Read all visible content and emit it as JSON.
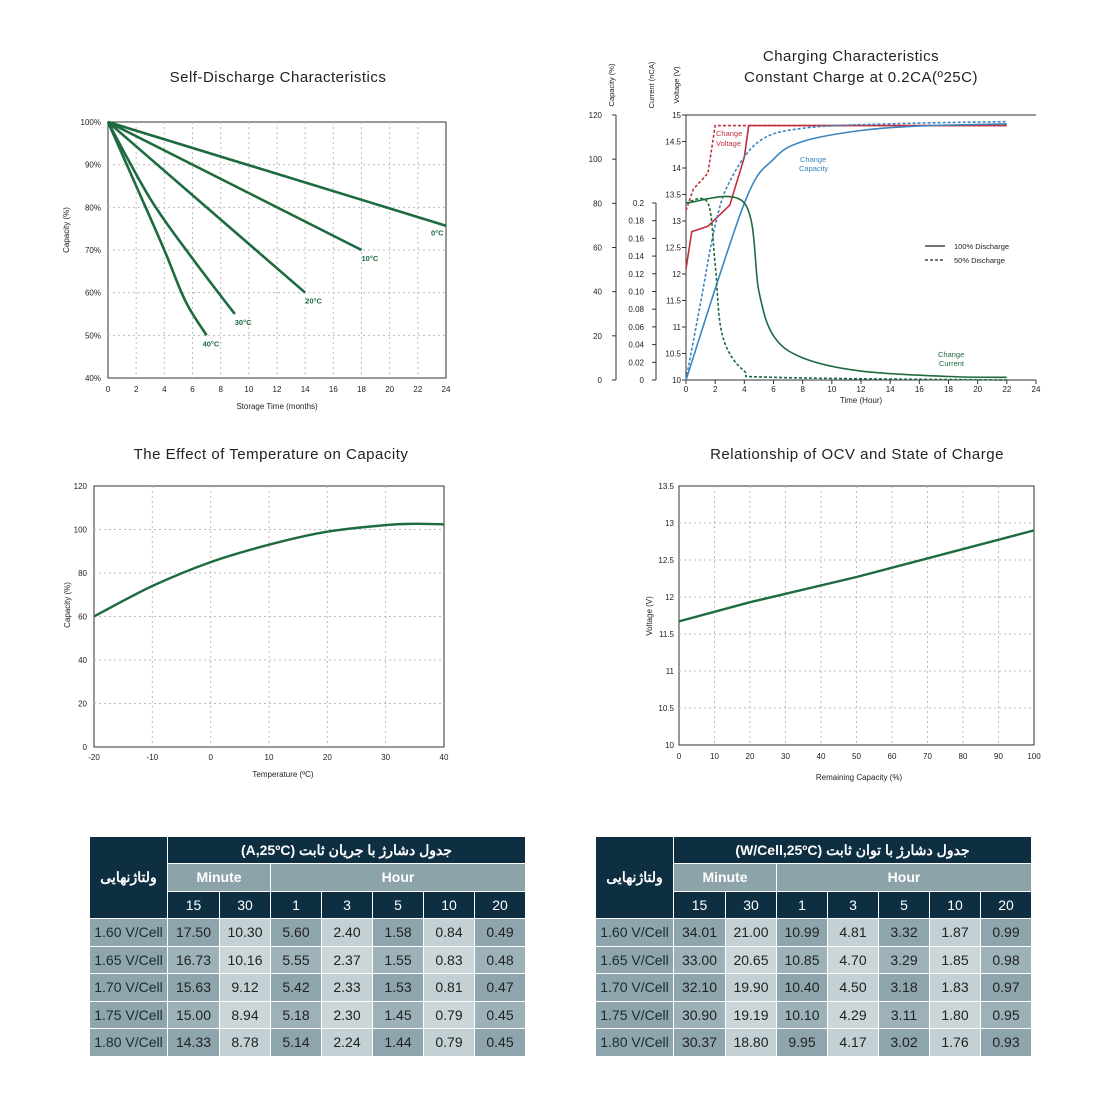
{
  "chart_data": [
    {
      "type": "line",
      "title": "Self-Discharge Characteristics",
      "xlabel": "Storage Time (months)",
      "ylabel": "Capacity (%)",
      "xlim": [
        0,
        24
      ],
      "ylim": [
        40,
        100
      ],
      "xticks": [
        "0",
        "2",
        "4",
        "6",
        "8",
        "10",
        "12",
        "14",
        "16",
        "18",
        "20",
        "22",
        "24"
      ],
      "yticks": [
        "40%",
        "50%",
        "60%",
        "70%",
        "80%",
        "90%",
        "100%"
      ],
      "grid": true,
      "series": [
        {
          "name": "0°C",
          "points": [
            [
              0,
              100
            ],
            [
              24,
              75.7
            ]
          ]
        },
        {
          "name": "10°C",
          "points": [
            [
              0,
              100
            ],
            [
              18,
              70
            ]
          ]
        },
        {
          "name": "20°C",
          "points": [
            [
              0,
              100
            ],
            [
              14,
              60
            ]
          ]
        },
        {
          "name": "30°C",
          "points": [
            [
              0,
              100
            ],
            [
              3,
              82
            ],
            [
              6,
              68
            ],
            [
              9,
              55
            ]
          ]
        },
        {
          "name": "40°C",
          "points": [
            [
              0,
              100
            ],
            [
              2,
              85
            ],
            [
              4,
              70
            ],
            [
              5.5,
              58
            ],
            [
              7,
              50
            ]
          ]
        }
      ]
    },
    {
      "type": "line",
      "title": "Charging Characteristics",
      "subtitle": "Constant Charge at 0.2CA(º25C)",
      "xlabel": "Time (Hour)",
      "axis_labels": [
        "Capacity (%)",
        "Current (nCA)",
        "Voltage (V)"
      ],
      "xlim": [
        0,
        24
      ],
      "xticks": [
        "0",
        "2",
        "4",
        "6",
        "8",
        "10",
        "12",
        "14",
        "16",
        "18",
        "20",
        "22",
        "24"
      ],
      "capacity_ticks": [
        "0",
        "20",
        "40",
        "60",
        "80",
        "100",
        "120"
      ],
      "current_ticks": [
        "0",
        "0.02",
        "0.04",
        "0.06",
        "0.08",
        "0.10",
        "0.12",
        "0.14",
        "0.16",
        "0.18",
        "0.2"
      ],
      "voltage_ticks": [
        "10",
        "10.5",
        "11",
        "11.5",
        "12",
        "12.5",
        "13",
        "13.5",
        "14",
        "14.5",
        "15"
      ],
      "legend": [
        "100% Discharge",
        "50% Discharge"
      ],
      "annotations": [
        "Change Voltage",
        "Change Capacity",
        "Change Current"
      ],
      "series": [
        {
          "name": "Change Voltage",
          "style": "solid",
          "unit": "V",
          "points": [
            [
              0,
              12.1
            ],
            [
              0.4,
              12.8
            ],
            [
              1.5,
              12.9
            ],
            [
              3,
              13.3
            ],
            [
              4,
              14.2
            ],
            [
              4.3,
              14.8
            ],
            [
              22,
              14.8
            ]
          ]
        },
        {
          "name": "Change Voltage",
          "style": "dashed",
          "unit": "V",
          "points": [
            [
              0,
              13.2
            ],
            [
              0.5,
              13.6
            ],
            [
              1.5,
              13.9
            ],
            [
              2,
              14.8
            ],
            [
              22,
              14.8
            ]
          ]
        },
        {
          "name": "Change Capacity",
          "style": "solid",
          "unit": "%",
          "points": [
            [
              0,
              0
            ],
            [
              4,
              80
            ],
            [
              6,
              100
            ],
            [
              8,
              108
            ],
            [
              12,
              113
            ],
            [
              16,
              115
            ],
            [
              22,
              116
            ]
          ]
        },
        {
          "name": "Change Capacity",
          "style": "dashed",
          "unit": "%",
          "points": [
            [
              0,
              0
            ],
            [
              1,
              35
            ],
            [
              2,
              70
            ],
            [
              3,
              90
            ],
            [
              5,
              108
            ],
            [
              8,
              114
            ],
            [
              14,
              116
            ],
            [
              22,
              117
            ]
          ]
        },
        {
          "name": "Change Current",
          "style": "solid",
          "unit": "CA",
          "points": [
            [
              0,
              0.2
            ],
            [
              4,
              0.2
            ],
            [
              5,
              0.1
            ],
            [
              6,
              0.05
            ],
            [
              8,
              0.025
            ],
            [
              12,
              0.01
            ],
            [
              18,
              0.004
            ],
            [
              22,
              0.003
            ]
          ]
        },
        {
          "name": "Change Current",
          "style": "dashed",
          "unit": "CA",
          "points": [
            [
              0,
              0.2
            ],
            [
              1.5,
              0.2
            ],
            [
              2,
              0.13
            ],
            [
              2.5,
              0.05
            ],
            [
              4,
              0.01
            ],
            [
              6,
              0.003
            ],
            [
              22,
              0.0
            ]
          ]
        }
      ]
    },
    {
      "type": "line",
      "title": "The Effect of Temperature on Capacity",
      "xlabel": "Temperature (ºC)",
      "ylabel": "Capacity (%)",
      "xlim": [
        -20,
        40
      ],
      "ylim": [
        0,
        120
      ],
      "xticks": [
        "-20",
        "-10",
        "0",
        "10",
        "20",
        "30",
        "40"
      ],
      "yticks": [
        "0",
        "20",
        "40",
        "60",
        "80",
        "100",
        "120"
      ],
      "grid": true,
      "series": [
        {
          "name": "",
          "points": [
            [
              -20,
              60
            ],
            [
              -10,
              74
            ],
            [
              0,
              85
            ],
            [
              10,
              93
            ],
            [
              20,
              99
            ],
            [
              30,
              102
            ],
            [
              35,
              102.6
            ],
            [
              40,
              102.4
            ]
          ]
        }
      ]
    },
    {
      "type": "line",
      "title": "Relationship of OCV and State of Charge",
      "xlabel": "Remaining Capacity (%)",
      "ylabel": "Voltage (V)",
      "xlim": [
        0,
        100
      ],
      "ylim": [
        10,
        13.5
      ],
      "xticks": [
        "0",
        "10",
        "20",
        "30",
        "40",
        "50",
        "60",
        "70",
        "80",
        "90",
        "100"
      ],
      "yticks": [
        "10",
        "10.5",
        "11",
        "11.5",
        "12",
        "12.5",
        "13",
        "13.5"
      ],
      "grid": true,
      "series": [
        {
          "name": "",
          "points": [
            [
              0,
              11.67
            ],
            [
              20,
              11.93
            ],
            [
              50,
              12.27
            ],
            [
              100,
              12.9
            ]
          ]
        }
      ]
    },
    {
      "type": "table",
      "title": "جدول دشارژ با جریان ثابت (A,25ºC)",
      "corner": "ولتاژنهایی",
      "groups": [
        {
          "label": "Minute",
          "span": 2
        },
        {
          "label": "Hour",
          "span": 5
        }
      ],
      "columns": [
        "15",
        "30",
        "1",
        "3",
        "5",
        "10",
        "20"
      ],
      "rows": [
        {
          "label": "1.60 V/Cell",
          "values": [
            "17.50",
            "10.30",
            "5.60",
            "2.40",
            "1.58",
            "0.84",
            "0.49"
          ]
        },
        {
          "label": "1.65 V/Cell",
          "values": [
            "16.73",
            "10.16",
            "5.55",
            "2.37",
            "1.55",
            "0.83",
            "0.48"
          ]
        },
        {
          "label": "1.70 V/Cell",
          "values": [
            "15.63",
            "9.12",
            "5.42",
            "2.33",
            "1.53",
            "0.81",
            "0.47"
          ]
        },
        {
          "label": "1.75 V/Cell",
          "values": [
            "15.00",
            "8.94",
            "5.18",
            "2.30",
            "1.45",
            "0.79",
            "0.45"
          ]
        },
        {
          "label": "1.80 V/Cell",
          "values": [
            "14.33",
            "8.78",
            "5.14",
            "2.24",
            "1.44",
            "0.79",
            "0.45"
          ]
        }
      ]
    },
    {
      "type": "table",
      "title": "جدول دشارژ با توان ثابت (W/Cell,25ºC)",
      "corner": "ولتاژنهایی",
      "groups": [
        {
          "label": "Minute",
          "span": 2
        },
        {
          "label": "Hour",
          "span": 5
        }
      ],
      "columns": [
        "15",
        "30",
        "1",
        "3",
        "5",
        "10",
        "20"
      ],
      "rows": [
        {
          "label": "1.60 V/Cell",
          "values": [
            "34.01",
            "21.00",
            "10.99",
            "4.81",
            "3.32",
            "1.87",
            "0.99"
          ]
        },
        {
          "label": "1.65 V/Cell",
          "values": [
            "33.00",
            "20.65",
            "10.85",
            "4.70",
            "3.29",
            "1.85",
            "0.98"
          ]
        },
        {
          "label": "1.70 V/Cell",
          "values": [
            "32.10",
            "19.90",
            "10.40",
            "4.50",
            "3.18",
            "1.83",
            "0.97"
          ]
        },
        {
          "label": "1.75 V/Cell",
          "values": [
            "30.90",
            "19.19",
            "10.10",
            "4.29",
            "3.11",
            "1.80",
            "0.95"
          ]
        },
        {
          "label": "1.80 V/Cell",
          "values": [
            "30.37",
            "18.80",
            "9.95",
            "4.17",
            "3.02",
            "1.76",
            "0.93"
          ]
        }
      ]
    }
  ],
  "colors": {
    "green": "#1d6b3f",
    "red": "#c0303e",
    "blue": "#3a86c0",
    "navy": "#0e2e41",
    "grey_blue": "#8fa5ad",
    "light_blue_grey": "#c3d0d4"
  }
}
